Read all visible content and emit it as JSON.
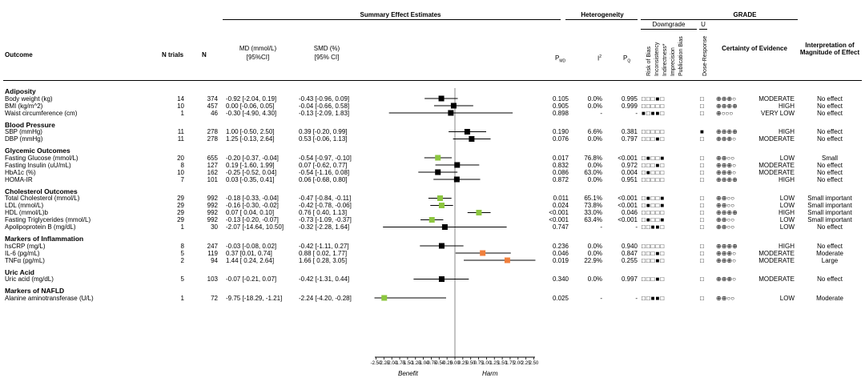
{
  "headers": {
    "summary": "Summary Effect Estimates",
    "heterogeneity": "Heterogeneity",
    "grade": "GRADE",
    "downgrade": "Downgrade",
    "upgrade": "U",
    "outcome": "Outcome",
    "n_trials": "N trials",
    "n": "N",
    "md": "MD (mmol/L)",
    "md_ci": "[95%CI]",
    "smd": "SMD (%)",
    "smd_ci": "[95% CI]",
    "p_md": "P",
    "p_md_sub": "MD",
    "i2": "I",
    "i2_sup": "2",
    "pq": "P",
    "pq_sub": "Q",
    "certainty": "Certainty of Evidence",
    "interpretation": "Interpretation of Magnitude of Effect",
    "grade_cols": [
      "Risk of Bias",
      "Inconsistency",
      "Indirectness*",
      "Imprecision",
      "Publication Bias",
      "Dose-Response"
    ]
  },
  "axis": {
    "ticks": [
      "-2.50",
      "-2.25",
      "-2.00",
      "-1.75",
      "-1.50",
      "-1.25",
      "-1.00",
      "-0.75",
      "-0.50",
      "-0.25",
      "0.00",
      "0.25",
      "0.50",
      "0.75",
      "1.00",
      "1.25",
      "1.50",
      "1.75",
      "2.00",
      "2.25",
      "2.50"
    ],
    "benefit": "Benefit",
    "harm": "Harm"
  },
  "sections": [
    {
      "title": "Adiposity",
      "rows": [
        {
          "outcome": "Body weight (kg)",
          "trials": "14",
          "n": "374",
          "md": "-0.92 [-2.04, 0.19]",
          "smd": "-0.43 [-0.96, 0.09]",
          "pmd": "0.105",
          "i2": "0.0%",
          "pq": "0.995",
          "grade": "□□□■□",
          "dose": "□",
          "cert": "⊕⊕⊕○",
          "level": "MODERATE",
          "interp": "No effect",
          "est": -0.43,
          "lo": -0.96,
          "hi": 0.09,
          "color": "#000000"
        },
        {
          "outcome": "BMI (kg/m^2)",
          "trials": "10",
          "n": "457",
          "md": "0.00 [-0.06, 0.05]",
          "smd": "-0.04 [-0.66, 0.58]",
          "pmd": "0.905",
          "i2": "0.0%",
          "pq": "0.999",
          "grade": "□□□□□",
          "dose": "□",
          "cert": "⊕⊕⊕⊕",
          "level": "HIGH",
          "interp": "No effect",
          "est": -0.04,
          "lo": -0.66,
          "hi": 0.58,
          "color": "#000000"
        },
        {
          "outcome": "Waist circumference (cm)",
          "trials": "1",
          "n": "46",
          "md": "-0.30 [-4.90, 4.30]",
          "smd": "-0.13 [-2.09, 1.83]",
          "pmd": "0.898",
          "i2": "-",
          "pq": "-",
          "grade": "■□■■□",
          "dose": "□",
          "cert": "⊕○○○",
          "level": "VERY LOW",
          "interp": "No effect",
          "est": -0.13,
          "lo": -2.09,
          "hi": 1.83,
          "color": "#000000"
        }
      ]
    },
    {
      "title": "Blood Pressure",
      "rows": [
        {
          "outcome": "SBP (mmHg)",
          "trials": "11",
          "n": "278",
          "md": "1.00 [-0.50, 2.50]",
          "smd": "0.39 [-0.20, 0.99]",
          "pmd": "0.190",
          "i2": "6.6%",
          "pq": "0.381",
          "grade": "□□□□□",
          "dose": "■",
          "cert": "⊕⊕⊕⊕",
          "level": "HIGH",
          "interp": "No effect",
          "est": 0.39,
          "lo": -0.2,
          "hi": 0.99,
          "color": "#000000"
        },
        {
          "outcome": "DBP (mmHg)",
          "trials": "11",
          "n": "278",
          "md": "1.25 [-0.13, 2.64]",
          "smd": "0.53 [-0.06, 1.13]",
          "pmd": "0.076",
          "i2": "0.0%",
          "pq": "0.797",
          "grade": "□□□■□",
          "dose": "□",
          "cert": "⊕⊕⊕○",
          "level": "MODERATE",
          "interp": "No effect",
          "est": 0.53,
          "lo": -0.06,
          "hi": 1.13,
          "color": "#000000"
        }
      ]
    },
    {
      "title": "Glycemic Outcomes",
      "rows": [
        {
          "outcome": "Fasting Glucose (mmol/L)",
          "trials": "20",
          "n": "655",
          "md": "-0.20 [-0.37, -0.04]",
          "smd": "-0.54 [-0.97, -0.10]",
          "pmd": "0.017",
          "i2": "76.8%",
          "pq": "<0.001",
          "grade": "□■□□■",
          "dose": "□",
          "cert": "⊕⊕○○",
          "level": "LOW",
          "interp": "Small",
          "est": -0.54,
          "lo": -0.97,
          "hi": -0.1,
          "color": "#8cc63f"
        },
        {
          "outcome": "Fasting Insulin (uU/mL)",
          "trials": "8",
          "n": "127",
          "md": "0.19 [-1.60, 1.99]",
          "smd": "0.07 [-0.62, 0.77]",
          "pmd": "0.832",
          "i2": "0.0%",
          "pq": "0.972",
          "grade": "□□□■□",
          "dose": "□",
          "cert": "⊕⊕⊕○",
          "level": "MODERATE",
          "interp": "No effect",
          "est": 0.07,
          "lo": -0.62,
          "hi": 0.77,
          "color": "#000000"
        },
        {
          "outcome": "HbA1c (%)",
          "trials": "10",
          "n": "162",
          "md": "-0.25 [-0.52, 0.04]",
          "smd": "-0.54 [-1.16, 0.08]",
          "pmd": "0.086",
          "i2": "63.0%",
          "pq": "0.004",
          "grade": "□■□□□",
          "dose": "□",
          "cert": "⊕⊕⊕○",
          "level": "MODERATE",
          "interp": "No effect",
          "est": -0.54,
          "lo": -1.16,
          "hi": 0.08,
          "color": "#000000"
        },
        {
          "outcome": "HOMA-IR",
          "trials": "7",
          "n": "101",
          "md": "0.03 [-0.35, 0.41]",
          "smd": "0.06 [-0.68, 0.80]",
          "pmd": "0.872",
          "i2": "0.0%",
          "pq": "0.951",
          "grade": "□□□□□",
          "dose": "□",
          "cert": "⊕⊕⊕⊕",
          "level": "HIGH",
          "interp": "No effect",
          "est": 0.06,
          "lo": -0.68,
          "hi": 0.8,
          "color": "#000000"
        }
      ]
    },
    {
      "title": "Cholesterol Outcomes",
      "rows": [
        {
          "outcome": "Total Cholesterol (mmol/L)",
          "trials": "29",
          "n": "992",
          "md": "-0.18 [-0.33, -0.04]",
          "smd": "-0.47 [-0.84, -0.11]",
          "pmd": "0.011",
          "i2": "65.1%",
          "pq": "<0.001",
          "grade": "□■□□■",
          "dose": "□",
          "cert": "⊕⊕○○",
          "level": "LOW",
          "interp": "Small important",
          "est": -0.47,
          "lo": -0.84,
          "hi": -0.11,
          "color": "#8cc63f"
        },
        {
          "outcome": "LDL (mmol/L)",
          "trials": "29",
          "n": "992",
          "md": "-0.16 [-0.30, -0.02]",
          "smd": "-0.42 [-0.78, -0.06]",
          "pmd": "0.024",
          "i2": "73.8%",
          "pq": "<0.001",
          "grade": "□■□□■",
          "dose": "□",
          "cert": "⊕⊕○○",
          "level": "LOW",
          "interp": "Small important",
          "est": -0.42,
          "lo": -0.78,
          "hi": -0.06,
          "color": "#8cc63f"
        },
        {
          "outcome": "HDL (mmol/L)b",
          "trials": "29",
          "n": "992",
          "md": "0.07 [ 0.04, 0.10]",
          "smd": "0.76 [ 0.40, 1.13]",
          "pmd": "<0.001",
          "i2": "33.0%",
          "pq": "0.046",
          "grade": "□□□□□",
          "dose": "□",
          "cert": "⊕⊕⊕⊕",
          "level": "HIGH",
          "interp": "Small important",
          "est": 0.76,
          "lo": 0.4,
          "hi": 1.13,
          "color": "#8cc63f"
        },
        {
          "outcome": "Fasting Triglycerides (mmol/L)",
          "trials": "29",
          "n": "992",
          "md": "-0.13 [-0.20, -0.07]",
          "smd": "-0.73 [-1.09, -0.37]",
          "pmd": "<0.001",
          "i2": "63.4%",
          "pq": "<0.001",
          "grade": "□■□□■",
          "dose": "□",
          "cert": "⊕⊕○○",
          "level": "LOW",
          "interp": "Small important",
          "est": -0.73,
          "lo": -1.09,
          "hi": -0.37,
          "color": "#8cc63f"
        },
        {
          "outcome": "Apolipoprotein B (mg/dL)",
          "trials": "1",
          "n": "30",
          "md": "-2.07 [-14.64, 10.50]",
          "smd": "-0.32 [-2.28, 1.64]",
          "pmd": "0.747",
          "i2": "-",
          "pq": "-",
          "grade": "□□■■□",
          "dose": "□",
          "cert": "⊕⊕○○",
          "level": "LOW",
          "interp": "No effect",
          "est": -0.32,
          "lo": -2.28,
          "hi": 1.64,
          "color": "#000000"
        }
      ]
    },
    {
      "title": "Markers of Inflammation",
      "rows": [
        {
          "outcome": "hsCRP (mg/L)",
          "trials": "8",
          "n": "247",
          "md": "-0.03 [-0.08, 0.02]",
          "smd": "-0.42 [-1.11, 0.27]",
          "pmd": "0.236",
          "i2": "0.0%",
          "pq": "0.940",
          "grade": "□□□□□",
          "dose": "□",
          "cert": "⊕⊕⊕⊕",
          "level": "HIGH",
          "interp": "No effect",
          "est": -0.42,
          "lo": -1.11,
          "hi": 0.27,
          "color": "#000000"
        },
        {
          "outcome": "IL-6 (pg/mL)",
          "trials": "5",
          "n": "119",
          "md": "0.37 [0.01, 0.74]",
          "smd": "0.88 [ 0.02, 1.77]",
          "pmd": "0.046",
          "i2": "0.0%",
          "pq": "0.847",
          "grade": "□□□■□",
          "dose": "□",
          "cert": "⊕⊕⊕○",
          "level": "MODERATE",
          "interp": "Moderate",
          "est": 0.88,
          "lo": 0.02,
          "hi": 1.77,
          "color": "#f07f3c"
        },
        {
          "outcome": "TNFα (pg/mL)",
          "trials": "2",
          "n": "94",
          "md": "1.44 [ 0.24, 2.64]",
          "smd": "1.66 [ 0.28, 3.05]",
          "pmd": "0.019",
          "i2": "22.9%",
          "pq": "0.255",
          "grade": "□□□■□",
          "dose": "□",
          "cert": "⊕⊕⊕○",
          "level": "MODERATE",
          "interp": "Large",
          "est": 1.66,
          "lo": 0.28,
          "hi": 3.05,
          "color": "#f07f3c"
        }
      ]
    },
    {
      "title": "Uric Acid",
      "rows": [
        {
          "outcome": "Uric acid (mg/dL)",
          "trials": "5",
          "n": "103",
          "md": "-0.07 [-0.21, 0.07]",
          "smd": "-0.42 [-1.31, 0.44]",
          "pmd": "0.340",
          "i2": "0.0%",
          "pq": "0.997",
          "grade": "□□□■□",
          "dose": "□",
          "cert": "⊕⊕⊕○",
          "level": "MODERATE",
          "interp": "No effect",
          "est": -0.42,
          "lo": -1.31,
          "hi": 0.44,
          "color": "#000000"
        }
      ]
    },
    {
      "title": "Markers of NAFLD",
      "rows": [
        {
          "outcome": "Alanine aminotransferase (U/L)",
          "trials": "1",
          "n": "72",
          "md": "-9.75 [-18.29, -1.21]",
          "smd": "-2.24 [-4.20, -0.28]",
          "pmd": "0.025",
          "i2": "-",
          "pq": "-",
          "grade": "□□■■□",
          "dose": "□",
          "cert": "⊕⊕○○",
          "level": "LOW",
          "interp": "Moderate",
          "est": -2.24,
          "lo": -4.2,
          "hi": -0.28,
          "color": "#8cc63f"
        }
      ]
    }
  ]
}
